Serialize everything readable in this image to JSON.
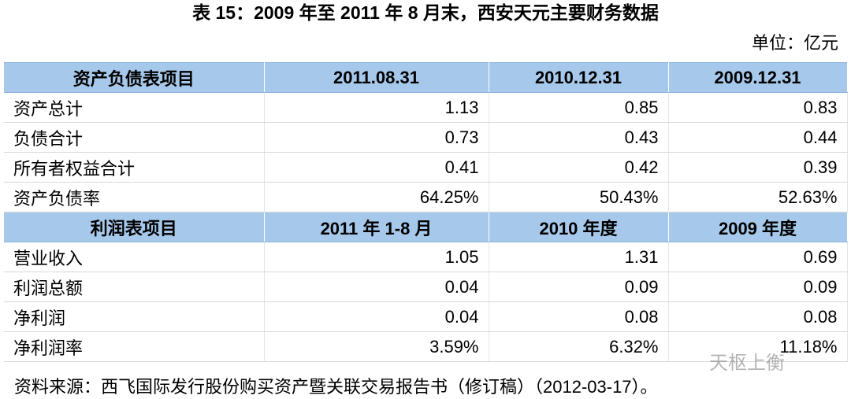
{
  "title": "表 15：2009 年至 2011 年 8 月末，西安天元主要财务数据",
  "unit": "单位：亿元",
  "table": {
    "sections": [
      {
        "header": [
          "资产负债表项目",
          "2011.08.31",
          "2010.12.31",
          "2009.12.31"
        ],
        "rows": [
          [
            "资产总计",
            "1.13",
            "0.85",
            "0.83"
          ],
          [
            "负债合计",
            "0.73",
            "0.43",
            "0.44"
          ],
          [
            "所有者权益合计",
            "0.41",
            "0.42",
            "0.39"
          ],
          [
            "资产负债率",
            "64.25%",
            "50.43%",
            "52.63%"
          ]
        ]
      },
      {
        "header": [
          "利润表项目",
          "2011 年 1-8 月",
          "2010 年度",
          "2009 年度"
        ],
        "rows": [
          [
            "营业收入",
            "1.05",
            "1.31",
            "0.69"
          ],
          [
            "利润总额",
            "0.04",
            "0.09",
            "0.09"
          ],
          [
            "净利润",
            "0.04",
            "0.08",
            "0.08"
          ],
          [
            "净利润率",
            "3.59%",
            "6.32%",
            "11.18%"
          ]
        ]
      }
    ]
  },
  "source": "资料来源：西飞国际发行股份购买资产暨关联交易报告书（修订稿）（2012-03-17）。",
  "watermark": "天枢上衡"
}
